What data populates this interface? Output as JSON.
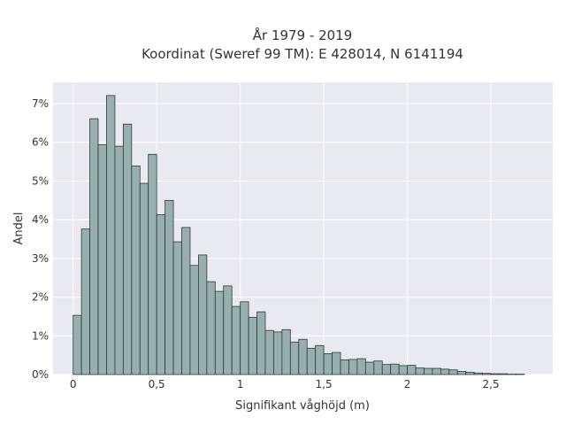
{
  "chart_data": {
    "type": "bar",
    "title_line1": "År 1979 - 2019",
    "title_line2": "Koordinat (Sweref 99 TM): E 428014, N 6141194",
    "xlabel": "Signifikant våghöjd (m)",
    "ylabel": "Andel",
    "xlim": [
      -0.12,
      2.87
    ],
    "ylim": [
      0,
      0.0755
    ],
    "grid": true,
    "x_ticks": [
      {
        "value": 0,
        "label": "0"
      },
      {
        "value": 0.5,
        "label": "0,5"
      },
      {
        "value": 1,
        "label": "1"
      },
      {
        "value": 1.5,
        "label": "1,5"
      },
      {
        "value": 2,
        "label": "2"
      },
      {
        "value": 2.5,
        "label": "2,5"
      }
    ],
    "y_ticks": [
      {
        "value": 0,
        "label": "0%"
      },
      {
        "value": 0.01,
        "label": "1%"
      },
      {
        "value": 0.02,
        "label": "2%"
      },
      {
        "value": 0.03,
        "label": "3%"
      },
      {
        "value": 0.04,
        "label": "4%"
      },
      {
        "value": 0.05,
        "label": "5%"
      },
      {
        "value": 0.06,
        "label": "6%"
      },
      {
        "value": 0.07,
        "label": "7%"
      }
    ],
    "bin_width": 0.05,
    "bin_starts": [
      0.0,
      0.05,
      0.1,
      0.15,
      0.2,
      0.25,
      0.3,
      0.35,
      0.4,
      0.45,
      0.5,
      0.55,
      0.6,
      0.65,
      0.7,
      0.75,
      0.8,
      0.85,
      0.9,
      0.95,
      1.0,
      1.05,
      1.1,
      1.15,
      1.2,
      1.25,
      1.3,
      1.35,
      1.4,
      1.45,
      1.5,
      1.55,
      1.6,
      1.65,
      1.7,
      1.75,
      1.8,
      1.85,
      1.9,
      1.95,
      2.0,
      2.05,
      2.1,
      2.15,
      2.2,
      2.25,
      2.3,
      2.35,
      2.4,
      2.45,
      2.5,
      2.55,
      2.6,
      2.65
    ],
    "values": [
      0.0153,
      0.0376,
      0.0661,
      0.0594,
      0.0721,
      0.059,
      0.0647,
      0.0539,
      0.0494,
      0.0569,
      0.0413,
      0.045,
      0.0343,
      0.038,
      0.0282,
      0.0309,
      0.024,
      0.0215,
      0.0229,
      0.0176,
      0.0188,
      0.0148,
      0.0162,
      0.0114,
      0.011,
      0.0116,
      0.0084,
      0.0091,
      0.0068,
      0.0075,
      0.0054,
      0.0057,
      0.0038,
      0.0039,
      0.0041,
      0.0032,
      0.0035,
      0.0026,
      0.0027,
      0.0023,
      0.0024,
      0.0017,
      0.0016,
      0.0016,
      0.0014,
      0.0012,
      0.0008,
      0.0006,
      0.0004,
      0.0003,
      0.0002,
      0.0002,
      0.0001,
      0.0001
    ],
    "colors": {
      "bar_fill": "#97b0ae",
      "bar_stroke": "#2f3b3a",
      "plot_background": "#e9e9f2",
      "grid": "#ffffff",
      "text": "#333333"
    }
  }
}
